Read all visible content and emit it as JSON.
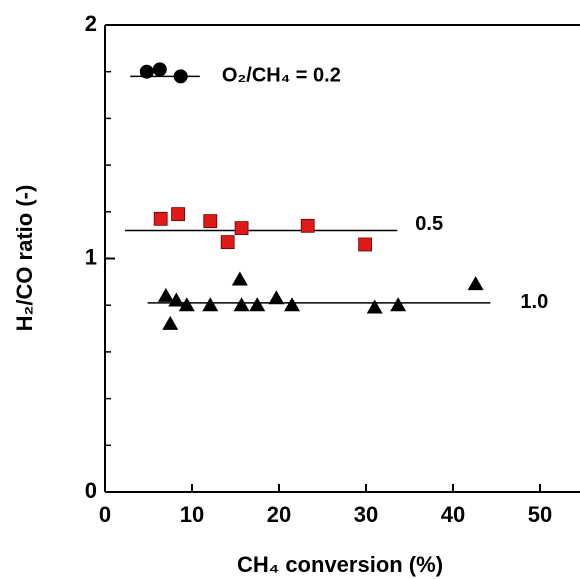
{
  "chart_data": {
    "type": "scatter",
    "xlabel": "CH₄ conversion  (%)",
    "ylabel": "H₂/CO ratio  (-)",
    "xlim": [
      0,
      54.6
    ],
    "ylim": [
      0,
      2
    ],
    "xticks": [
      0,
      10,
      20,
      30,
      40,
      50
    ],
    "yticks": [
      0,
      1,
      2
    ],
    "yminorticks": [
      0.2,
      0.4,
      0.6,
      0.8,
      1.2,
      1.4,
      1.6,
      1.8
    ],
    "series": [
      {
        "name": "O₂/CH₄ = 0.2",
        "color": "#000000",
        "marker": "circle",
        "x": [
          4.8,
          6.3,
          8.7
        ],
        "values": [
          1.8,
          1.81,
          1.78
        ],
        "fit_x": [
          2.9,
          10.9
        ],
        "fit_y": [
          1.78,
          1.78
        ]
      },
      {
        "name": "0.5",
        "color": "#e01919",
        "marker": "square",
        "x": [
          6.4,
          8.4,
          12.1,
          14.1,
          15.7,
          23.3,
          29.9
        ],
        "values": [
          1.17,
          1.19,
          1.16,
          1.07,
          1.13,
          1.14,
          1.06
        ],
        "fit_x": [
          2.3,
          33.6
        ],
        "fit_y": [
          1.12,
          1.12
        ]
      },
      {
        "name": "1.0",
        "color": "#000000",
        "marker": "triangle",
        "x": [
          7.0,
          7.5,
          8.2,
          9.4,
          12.1,
          15.5,
          15.7,
          17.5,
          19.7,
          21.5,
          31.0,
          33.7,
          42.6
        ],
        "values": [
          0.84,
          0.72,
          0.82,
          0.8,
          0.8,
          0.91,
          0.8,
          0.8,
          0.83,
          0.8,
          0.79,
          0.8,
          0.89
        ],
        "fit_x": [
          4.9,
          44.3
        ],
        "fit_y": [
          0.81,
          0.81
        ]
      }
    ]
  }
}
